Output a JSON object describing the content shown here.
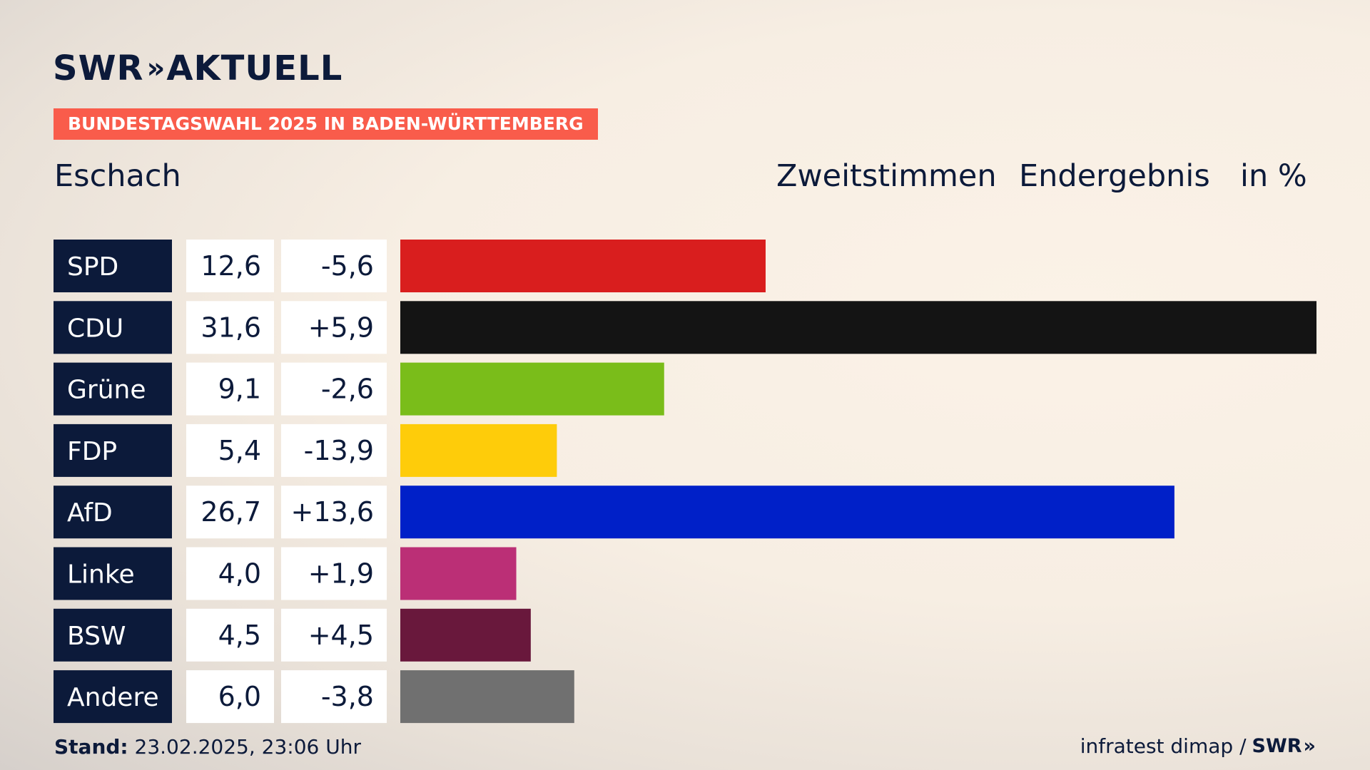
{
  "header": {
    "logo_text": "SWR",
    "logo_chevrons": "»",
    "logo_suffix": "AKTUELL",
    "badge": "BUNDESTAGSWAHL 2025 IN BADEN-WÜRTTEMBERG",
    "place": "Eschach",
    "vote_type": "Zweitstimmen",
    "result_type": "Endergebnis",
    "unit": "in %"
  },
  "footer": {
    "stand_label": "Stand:",
    "stand_value": "23.02.2025, 23:06 Uhr",
    "source": "infratest dimap /",
    "source_logo": "SWR",
    "source_logo_chevrons": "»"
  },
  "colors": {
    "label_bg": "#0c1a3a",
    "label_text": "#ffffff",
    "value_bg": "#ffffff",
    "value_text": "#0c1a3a",
    "badge_bg": "#f95c4b"
  },
  "chart_data": {
    "type": "bar",
    "orientation": "horizontal",
    "categories": [
      "SPD",
      "CDU",
      "Grüne",
      "FDP",
      "AfD",
      "Linke",
      "BSW",
      "Andere"
    ],
    "values": [
      12.6,
      31.6,
      9.1,
      5.4,
      26.7,
      4.0,
      4.5,
      6.0
    ],
    "value_labels": [
      "12,6",
      "31,6",
      "9,1",
      "5,4",
      "26,7",
      "4,0",
      "4,5",
      "6,0"
    ],
    "changes": [
      -5.6,
      5.9,
      -2.6,
      -13.9,
      13.6,
      1.9,
      4.5,
      -3.8
    ],
    "change_labels": [
      "-5,6",
      "+5,9",
      "-2,6",
      "-13,9",
      "+13,6",
      "+1,9",
      "+4,5",
      "-3,8"
    ],
    "bar_colors": [
      "#d91e1e",
      "#141414",
      "#7abd1a",
      "#fecc0a",
      "#0020c8",
      "#bb2f76",
      "#69183c",
      "#707070"
    ],
    "xlim": [
      0,
      31.6
    ],
    "grid": false
  }
}
